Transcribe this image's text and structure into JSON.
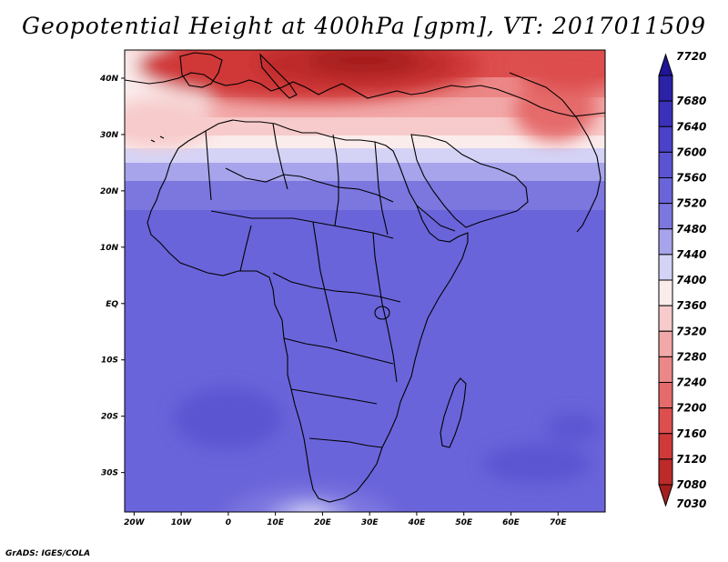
{
  "title": "Geopotential Height at 400hPa [gpm], VT: 2017011509",
  "credit": "GrADS: IGES/COLA",
  "map": {
    "lon_range": [
      -22,
      80
    ],
    "lat_range": [
      -37,
      45
    ],
    "lat_ticks": [
      {
        "v": 40,
        "t": "40N"
      },
      {
        "v": 30,
        "t": "30N"
      },
      {
        "v": 20,
        "t": "20N"
      },
      {
        "v": 10,
        "t": "10N"
      },
      {
        "v": 0,
        "t": "EQ"
      },
      {
        "v": -10,
        "t": "10S"
      },
      {
        "v": -20,
        "t": "20S"
      },
      {
        "v": -30,
        "t": "30S"
      }
    ],
    "lon_ticks": [
      {
        "v": -20,
        "t": "20W"
      },
      {
        "v": -10,
        "t": "10W"
      },
      {
        "v": 0,
        "t": "0"
      },
      {
        "v": 10,
        "t": "10E"
      },
      {
        "v": 20,
        "t": "20E"
      },
      {
        "v": 30,
        "t": "30E"
      },
      {
        "v": 40,
        "t": "40E"
      },
      {
        "v": 50,
        "t": "50E"
      },
      {
        "v": 60,
        "t": "60E"
      },
      {
        "v": 70,
        "t": "70E"
      }
    ]
  },
  "colorbar": {
    "levels": [
      {
        "label": "7720",
        "color": "#1f1596"
      },
      {
        "label": "7680",
        "color": "#2b22a8"
      },
      {
        "label": "7640",
        "color": "#3a31ba"
      },
      {
        "label": "7600",
        "color": "#4a42c8"
      },
      {
        "label": "7560",
        "color": "#5b54d2"
      },
      {
        "label": "7520",
        "color": "#6a64da"
      },
      {
        "label": "7480",
        "color": "#7c76df"
      },
      {
        "label": "7440",
        "color": "#a7a4ec"
      },
      {
        "label": "7400",
        "color": "#d4d3f6"
      },
      {
        "label": "7360",
        "color": "#fbecec"
      },
      {
        "label": "7320",
        "color": "#f7cbcb"
      },
      {
        "label": "7280",
        "color": "#f2a8a8"
      },
      {
        "label": "7240",
        "color": "#ec8787"
      },
      {
        "label": "7200",
        "color": "#e56a6a"
      },
      {
        "label": "7160",
        "color": "#dd4e4e"
      },
      {
        "label": "7120",
        "color": "#d03939"
      },
      {
        "label": "7080",
        "color": "#bd2a2a"
      },
      {
        "label": "7030",
        "color": "#a51f1f"
      }
    ]
  }
}
